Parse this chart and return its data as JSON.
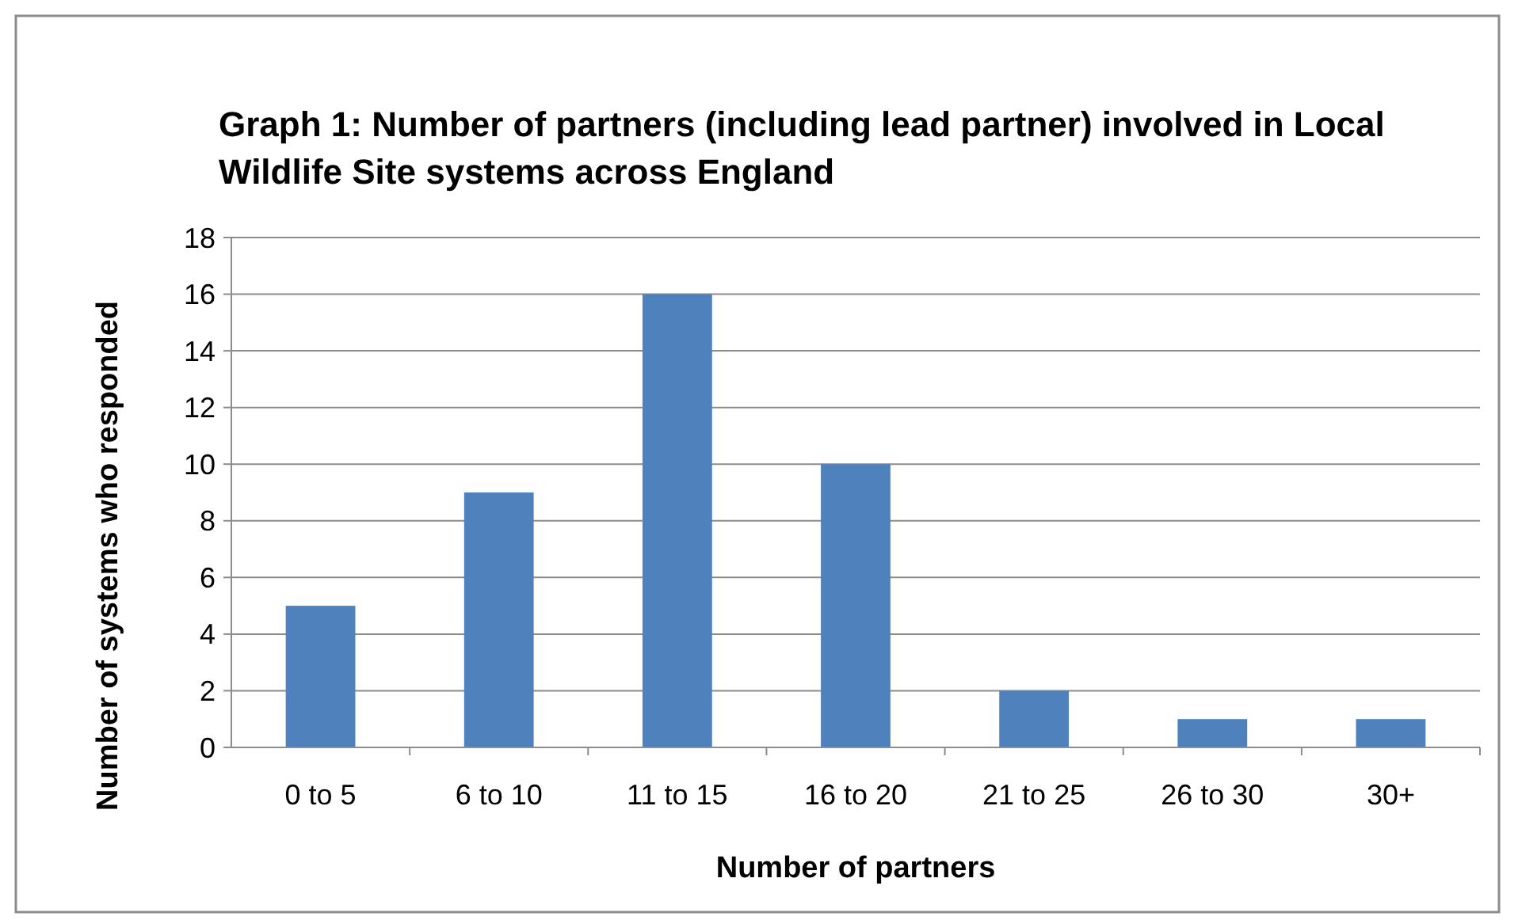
{
  "chart_data": {
    "type": "bar",
    "title": "Graph 1: Number of partners (including lead partner) involved in Local Wildlife Site systems across England",
    "xlabel": "Number of partners",
    "ylabel": "Number of systems who responded",
    "categories": [
      "0 to 5",
      "6 to 10",
      "11 to 15",
      "16 to 20",
      "21 to 25",
      "26 to 30",
      "30+"
    ],
    "values": [
      5,
      9,
      16,
      10,
      2,
      1,
      1
    ],
    "color": "#4f81bd",
    "ylim": [
      0,
      18
    ],
    "yticks": [
      0,
      2,
      4,
      6,
      8,
      10,
      12,
      14,
      16,
      18
    ],
    "grid": "y"
  }
}
